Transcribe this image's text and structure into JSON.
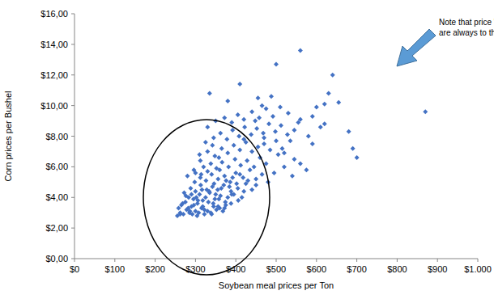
{
  "chart_data": {
    "type": "scatter",
    "x_label": "Soybean meal prices per Ton",
    "y_label": "Corn prices per Bushel",
    "annotations": [
      "Note that price \"Break Outs\"",
      "are always to the high side"
    ],
    "color": "#4472c4",
    "marker": "diamond",
    "grid": false,
    "xlim": [
      0,
      1000
    ],
    "xticks": [
      {
        "value": 0,
        "label": "$0"
      },
      {
        "value": 100,
        "label": "$100"
      },
      {
        "value": 200,
        "label": "$200"
      },
      {
        "value": 300,
        "label": "$300"
      },
      {
        "value": 400,
        "label": "$400"
      },
      {
        "value": 500,
        "label": "$500"
      },
      {
        "value": 600,
        "label": "$600"
      },
      {
        "value": 700,
        "label": "$700"
      },
      {
        "value": 800,
        "label": "$800"
      },
      {
        "value": 900,
        "label": "$900"
      },
      {
        "value": 1000,
        "label": "$1.000"
      }
    ],
    "ylim": [
      0,
      16
    ],
    "yticks": [
      {
        "value": 0,
        "label": "$0,00"
      },
      {
        "value": 2,
        "label": "$2,00"
      },
      {
        "value": 4,
        "label": "$4,00"
      },
      {
        "value": 6,
        "label": "$6,00"
      },
      {
        "value": 8,
        "label": "$8,00"
      },
      {
        "value": 10,
        "label": "$10,00"
      },
      {
        "value": 12,
        "label": "$12,00"
      },
      {
        "value": 14,
        "label": "$14,00"
      },
      {
        "value": 16,
        "label": "$16,00"
      }
    ],
    "x": [
      255,
      262,
      270,
      278,
      285,
      292,
      300,
      308,
      315,
      322,
      330,
      338,
      345,
      352,
      360,
      368,
      375,
      290,
      305,
      318,
      265,
      275,
      283,
      295,
      310,
      325,
      335,
      348,
      362,
      380,
      258,
      272,
      288,
      300,
      313,
      328,
      342,
      355,
      370,
      388,
      395,
      405,
      415,
      425,
      440,
      298,
      312,
      326,
      340,
      356,
      372,
      386,
      400,
      418,
      435,
      450,
      465,
      280,
      296,
      320,
      338,
      352,
      366,
      382,
      398,
      412,
      428,
      445,
      460,
      475,
      310,
      330,
      348,
      365,
      380,
      395,
      410,
      425,
      440,
      455,
      470,
      485,
      500,
      515,
      345,
      362,
      378,
      392,
      408,
      422,
      438,
      452,
      468,
      482,
      498,
      512,
      528,
      545,
      330,
      350,
      372,
      390,
      405,
      420,
      440,
      458,
      475,
      492,
      510,
      530,
      335,
      380,
      410,
      455,
      500,
      560,
      640,
      655,
      600,
      620,
      870,
      700,
      680,
      690,
      560,
      580,
      610,
      590,
      545,
      520,
      268,
      282,
      296,
      306,
      318,
      332,
      344,
      358,
      374,
      390,
      276,
      290,
      302,
      316,
      334,
      350,
      364,
      384,
      402,
      420,
      300,
      314,
      330,
      346,
      360,
      376,
      392,
      410,
      430,
      450,
      480,
      495,
      520,
      540,
      560,
      575,
      505,
      470,
      535,
      555,
      262,
      286,
      304,
      322,
      340,
      356,
      372,
      388,
      406,
      312,
      325,
      342,
      358,
      420,
      448,
      465,
      488,
      590,
      620,
      630
    ],
    "values": [
      2.8,
      3.0,
      2.9,
      3.2,
      3.0,
      2.9,
      3.1,
      3.0,
      3.3,
      2.9,
      3.1,
      3.0,
      3.4,
      3.2,
      3.3,
      3.1,
      3.5,
      3.4,
      3.6,
      3.8,
      3.5,
      3.7,
      4.0,
      3.9,
      4.2,
      4.0,
      4.3,
      3.9,
      4.1,
      4.0,
      3.3,
      4.3,
      4.6,
      4.4,
      4.8,
      4.5,
      4.7,
      4.5,
      4.8,
      4.4,
      4.2,
      4.6,
      4.0,
      4.9,
      4.5,
      5.0,
      5.3,
      5.1,
      5.5,
      5.2,
      5.4,
      5.0,
      5.6,
      5.3,
      5.8,
      5.2,
      5.5,
      5.4,
      5.8,
      6.0,
      6.2,
      5.9,
      6.3,
      6.0,
      6.5,
      6.1,
      6.4,
      6.0,
      6.6,
      6.2,
      6.8,
      7.0,
      6.7,
      7.2,
      6.9,
      7.4,
      7.1,
      7.6,
      7.0,
      7.3,
      7.5,
      7.1,
      7.7,
      7.2,
      7.9,
      8.2,
      7.8,
      8.4,
      8.0,
      8.6,
      8.1,
      8.5,
      8.2,
      8.8,
      8.3,
      8.7,
      8.1,
      8.4,
      8.6,
      9.0,
      9.2,
      8.9,
      9.4,
      9.1,
      9.6,
      9.2,
      9.8,
      9.3,
      9.9,
      9.5,
      10.8,
      10.3,
      11.4,
      10.5,
      12.7,
      13.6,
      12.0,
      10.2,
      9.9,
      10.1,
      9.6,
      6.6,
      8.3,
      7.2,
      9.1,
      8.0,
      8.6,
      7.5,
      6.5,
      6.9,
      3.6,
      3.3,
      3.5,
      3.8,
      3.4,
      3.7,
      3.6,
      3.9,
      3.7,
      4.2,
      4.1,
      4.2,
      4.0,
      4.5,
      4.4,
      4.2,
      4.6,
      4.7,
      4.9,
      4.4,
      5.6,
      5.5,
      5.7,
      4.9,
      5.8,
      5.1,
      5.3,
      5.5,
      5.1,
      4.8,
      5.0,
      5.6,
      6.0,
      5.4,
      6.2,
      5.8,
      6.8,
      7.9,
      7.7,
      8.9,
      2.9,
      3.1,
      2.8,
      3.2,
      2.9,
      3.4,
      3.3,
      3.6,
      3.8,
      6.4,
      7.6,
      7.4,
      6.6,
      7.8,
      9.0,
      10.0,
      10.6,
      9.3,
      8.8,
      10.8
    ]
  }
}
